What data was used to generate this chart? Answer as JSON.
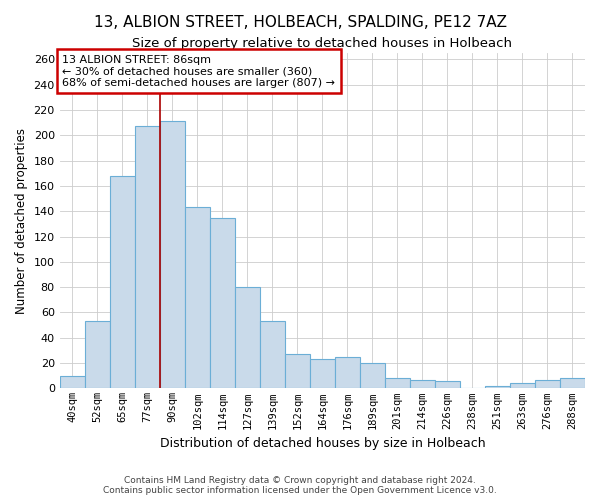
{
  "title": "13, ALBION STREET, HOLBEACH, SPALDING, PE12 7AZ",
  "subtitle": "Size of property relative to detached houses in Holbeach",
  "xlabel": "Distribution of detached houses by size in Holbeach",
  "ylabel": "Number of detached properties",
  "categories": [
    "40sqm",
    "52sqm",
    "65sqm",
    "77sqm",
    "90sqm",
    "102sqm",
    "114sqm",
    "127sqm",
    "139sqm",
    "152sqm",
    "164sqm",
    "176sqm",
    "189sqm",
    "201sqm",
    "214sqm",
    "226sqm",
    "238sqm",
    "251sqm",
    "263sqm",
    "276sqm",
    "288sqm"
  ],
  "values": [
    10,
    53,
    168,
    207,
    211,
    143,
    135,
    80,
    53,
    27,
    23,
    25,
    20,
    8,
    7,
    6,
    0,
    2,
    4,
    7,
    8
  ],
  "bar_color": "#c9daea",
  "bar_edge_color": "#6baed6",
  "vline_x": 3.5,
  "vline_color": "#aa0000",
  "annotation_title": "13 ALBION STREET: 86sqm",
  "annotation_line1": "← 30% of detached houses are smaller (360)",
  "annotation_line2": "68% of semi-detached houses are larger (807) →",
  "annotation_box_color": "#cc0000",
  "ylim": [
    0,
    265
  ],
  "yticks": [
    0,
    20,
    40,
    60,
    80,
    100,
    120,
    140,
    160,
    180,
    200,
    220,
    240,
    260
  ],
  "footer1": "Contains HM Land Registry data © Crown copyright and database right 2024.",
  "footer2": "Contains public sector information licensed under the Open Government Licence v3.0.",
  "background_color": "#ffffff",
  "plot_bg_color": "#ffffff",
  "grid_color": "#cccccc",
  "title_fontsize": 11,
  "subtitle_fontsize": 9.5
}
